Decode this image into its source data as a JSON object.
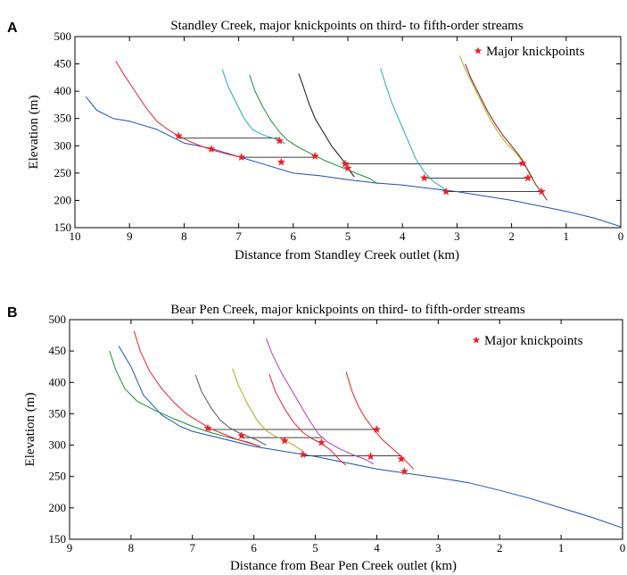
{
  "chart_data": [
    {
      "panel": "A",
      "type": "line",
      "title": "Standley Creek, major knickpoints on third- to fifth-order streams",
      "xlabel": "Distance from Standley Creek outlet (km)",
      "ylabel": "Elevation (m)",
      "xlim": [
        10,
        0
      ],
      "ylim": [
        150,
        500
      ],
      "x_reversed": true,
      "x_ticks": [
        10,
        9,
        8,
        7,
        6,
        5,
        4,
        3,
        2,
        1,
        0
      ],
      "y_ticks": [
        150,
        200,
        250,
        300,
        350,
        400,
        450,
        500
      ],
      "grid": false,
      "legend": {
        "position": "top-right",
        "entries": [
          {
            "label": "Major knickpoints",
            "marker": "star",
            "color": "#e8202a"
          }
        ]
      },
      "series": [
        {
          "color": "#1f4fb0",
          "x": [
            9.8,
            9.6,
            9.3,
            9.0,
            8.5,
            8.0,
            7.5,
            7.0,
            6.5,
            6.0,
            5.5,
            5.0,
            4.5,
            4.0,
            3.5,
            3.0,
            2.5,
            2.0,
            1.5,
            1.0,
            0.5,
            0.0
          ],
          "y": [
            390,
            365,
            350,
            345,
            330,
            305,
            295,
            280,
            265,
            250,
            245,
            238,
            232,
            228,
            222,
            216,
            208,
            200,
            190,
            180,
            168,
            152
          ]
        },
        {
          "color": "#e8202a",
          "x": [
            9.25,
            9.1,
            8.9,
            8.7,
            8.5,
            8.3,
            8.1,
            7.9,
            7.7,
            7.5,
            7.3,
            7.0
          ],
          "y": [
            455,
            430,
            400,
            370,
            345,
            330,
            318,
            308,
            300,
            293,
            287,
            280
          ]
        },
        {
          "color": "#22aaaa",
          "x": [
            7.3,
            7.2,
            7.05,
            6.9,
            6.75,
            6.6,
            6.5,
            6.4,
            6.25,
            6.15
          ],
          "y": [
            440,
            410,
            380,
            350,
            330,
            322,
            318,
            315,
            310,
            304
          ]
        },
        {
          "color": "#1a8a3a",
          "x": [
            6.8,
            6.7,
            6.55,
            6.4,
            6.25,
            6.1,
            5.95,
            5.8,
            5.6,
            5.4,
            5.2,
            5.0,
            4.8,
            4.6,
            4.45
          ],
          "y": [
            430,
            400,
            370,
            345,
            325,
            310,
            300,
            292,
            282,
            272,
            264,
            256,
            248,
            240,
            230
          ]
        },
        {
          "color": "#111111",
          "x": [
            5.9,
            5.82,
            5.72,
            5.6,
            5.45,
            5.3,
            5.18,
            5.08,
            5.0,
            4.95,
            4.88
          ],
          "y": [
            432,
            410,
            380,
            350,
            325,
            300,
            285,
            272,
            262,
            252,
            243
          ]
        },
        {
          "color": "#22aaaa",
          "x": [
            4.4,
            4.3,
            4.2,
            4.05,
            3.9,
            3.75,
            3.6,
            3.45,
            3.3,
            3.2
          ],
          "y": [
            442,
            410,
            380,
            345,
            310,
            275,
            252,
            236,
            226,
            218
          ]
        },
        {
          "color": "#aaaa22",
          "x": [
            2.95,
            2.85,
            2.7,
            2.55,
            2.4,
            2.25,
            2.1,
            1.95,
            1.8,
            1.7,
            1.6
          ],
          "y": [
            465,
            440,
            410,
            380,
            350,
            325,
            305,
            290,
            272,
            255,
            240
          ]
        },
        {
          "color": "#8b1a1a",
          "x": [
            2.85,
            2.75,
            2.6,
            2.45,
            2.3,
            2.15,
            2.0,
            1.88,
            1.78,
            1.65,
            1.55,
            1.45,
            1.35
          ],
          "y": [
            450,
            425,
            395,
            365,
            340,
            318,
            300,
            285,
            270,
            245,
            228,
            215,
            200
          ]
        }
      ],
      "knickpoints": [
        {
          "x": 8.1,
          "y": 318
        },
        {
          "x": 7.5,
          "y": 294
        },
        {
          "x": 6.95,
          "y": 279
        },
        {
          "x": 6.25,
          "y": 309
        },
        {
          "x": 6.22,
          "y": 270
        },
        {
          "x": 5.6,
          "y": 281
        },
        {
          "x": 5.05,
          "y": 267
        },
        {
          "x": 5.0,
          "y": 259
        },
        {
          "x": 3.6,
          "y": 241
        },
        {
          "x": 3.2,
          "y": 216
        },
        {
          "x": 1.8,
          "y": 268
        },
        {
          "x": 1.7,
          "y": 241
        },
        {
          "x": 1.45,
          "y": 216
        }
      ],
      "connectors": [
        {
          "x": [
            8.1,
            6.25
          ],
          "y": 314
        },
        {
          "x": [
            6.95,
            5.6
          ],
          "y": 279
        },
        {
          "x": [
            5.05,
            1.8
          ],
          "y": 267
        },
        {
          "x": [
            3.6,
            1.7
          ],
          "y": 241
        },
        {
          "x": [
            3.2,
            1.45
          ],
          "y": 216
        }
      ]
    },
    {
      "panel": "B",
      "type": "line",
      "title": "Bear Pen Creek, major knickpoints on third- to fifth-order streams",
      "xlabel": "Distance from Bear Pen Creek outlet (km)",
      "ylabel": "Elevation (m)",
      "xlim": [
        9,
        0
      ],
      "ylim": [
        150,
        500
      ],
      "x_reversed": true,
      "x_ticks": [
        9,
        8,
        7,
        6,
        5,
        4,
        3,
        2,
        1,
        0
      ],
      "y_ticks": [
        150,
        200,
        250,
        300,
        350,
        400,
        450,
        500
      ],
      "grid": false,
      "legend": {
        "position": "top-right",
        "entries": [
          {
            "label": "Major knickpoints",
            "marker": "star",
            "color": "#e8202a"
          }
        ]
      },
      "series": [
        {
          "color": "#1f4fb0",
          "x": [
            8.2,
            8.0,
            7.8,
            7.5,
            7.2,
            7.0,
            6.5,
            6.0,
            5.5,
            5.0,
            4.5,
            4.0,
            3.5,
            3.0,
            2.5,
            2.0,
            1.5,
            1.0,
            0.5,
            0.0
          ],
          "y": [
            458,
            425,
            380,
            348,
            330,
            322,
            310,
            298,
            290,
            282,
            272,
            262,
            255,
            248,
            240,
            228,
            215,
            200,
            185,
            168
          ]
        },
        {
          "color": "#1a8a3a",
          "x": [
            8.35,
            8.25,
            8.1,
            7.9,
            7.6,
            7.3,
            7.0,
            6.7,
            6.4,
            6.1,
            5.9
          ],
          "y": [
            450,
            420,
            390,
            370,
            355,
            342,
            330,
            320,
            312,
            305,
            298
          ]
        },
        {
          "color": "#e8202a",
          "x": [
            7.95,
            7.85,
            7.7,
            7.5,
            7.3,
            7.1,
            6.9,
            6.7,
            6.5,
            6.3,
            6.1,
            5.9
          ],
          "y": [
            482,
            450,
            418,
            390,
            368,
            350,
            338,
            326,
            318,
            310,
            304,
            298
          ]
        },
        {
          "color": "#555555",
          "x": [
            6.95,
            6.85,
            6.7,
            6.55,
            6.4,
            6.25,
            6.1,
            5.95,
            5.8
          ],
          "y": [
            412,
            385,
            360,
            340,
            328,
            320,
            314,
            308,
            300
          ]
        },
        {
          "color": "#aaaa22",
          "x": [
            6.35,
            6.25,
            6.1,
            5.95,
            5.8,
            5.65,
            5.5,
            5.35,
            5.2
          ],
          "y": [
            422,
            395,
            365,
            340,
            323,
            314,
            308,
            300,
            290
          ]
        },
        {
          "color": "#e8202a",
          "x": [
            5.75,
            5.65,
            5.5,
            5.35,
            5.2,
            5.05,
            4.9,
            4.75,
            4.6,
            4.5
          ],
          "y": [
            413,
            385,
            358,
            336,
            320,
            310,
            303,
            292,
            276,
            268
          ]
        },
        {
          "color": "#b23ab2",
          "x": [
            5.8,
            5.7,
            5.55,
            5.4,
            5.25,
            5.1,
            4.95,
            4.8,
            4.6,
            4.4,
            4.2,
            4.05
          ],
          "y": [
            470,
            445,
            415,
            390,
            365,
            340,
            318,
            305,
            294,
            285,
            278,
            270
          ]
        },
        {
          "color": "#e8202a",
          "x": [
            4.5,
            4.4,
            4.3,
            4.2,
            4.05,
            3.9,
            3.75,
            3.6,
            3.5,
            3.4
          ],
          "y": [
            417,
            385,
            362,
            345,
            325,
            308,
            295,
            282,
            272,
            262
          ]
        }
      ],
      "knickpoints": [
        {
          "x": 6.75,
          "y": 327
        },
        {
          "x": 6.2,
          "y": 315
        },
        {
          "x": 5.5,
          "y": 307
        },
        {
          "x": 5.2,
          "y": 285
        },
        {
          "x": 4.9,
          "y": 304
        },
        {
          "x": 4.1,
          "y": 282
        },
        {
          "x": 4.0,
          "y": 325
        },
        {
          "x": 3.6,
          "y": 278
        },
        {
          "x": 3.55,
          "y": 258
        }
      ],
      "connectors": [
        {
          "x": [
            6.75,
            4.0
          ],
          "y": 325
        },
        {
          "x": [
            6.2,
            4.9
          ],
          "y": 312
        },
        {
          "x": [
            5.2,
            3.6
          ],
          "y": 283
        }
      ]
    }
  ]
}
